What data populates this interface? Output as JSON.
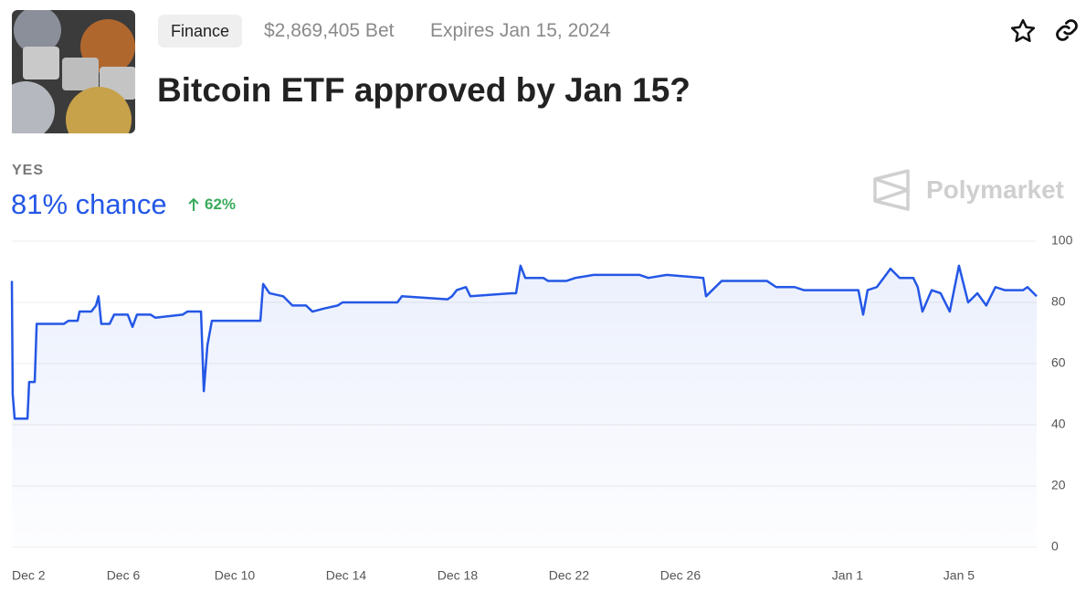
{
  "header": {
    "tag": "Finance",
    "volume": "$2,869,405 Bet",
    "expires": "Expires Jan 15, 2024",
    "title": "Bitcoin ETF approved by Jan 15?"
  },
  "outcome": {
    "label": "YES",
    "chance": "81% chance",
    "change": "62%"
  },
  "brand": "Polymarket",
  "chart_data": {
    "type": "line",
    "x": [
      0,
      0.03,
      0.1,
      0.56,
      0.62,
      0.82,
      0.89,
      1.87,
      2.03,
      2.36,
      2.43,
      2.85,
      3.02,
      3.11,
      3.21,
      3.51,
      3.67,
      4.16,
      4.33,
      4.49,
      4.98,
      5.15,
      6.13,
      6.3,
      6.79,
      6.89,
      7.02,
      7.18,
      7.93,
      8.1,
      8.92,
      9.02,
      9.25,
      9.74,
      10.07,
      10.56,
      10.79,
      11.21,
      11.7,
      11.87,
      13.84,
      14.0,
      15.64,
      15.8,
      15.97,
      16.3,
      16.46,
      17.93,
      18.1,
      18.26,
      18.43,
      19.08,
      19.25,
      19.9,
      20.23,
      20.89,
      22.52,
      22.85,
      23.51,
      24.82,
      24.92,
      25.48,
      27.11,
      27.44,
      28.1,
      28.43,
      30.23,
      30.39,
      30.56,
      30.72,
      31.05,
      31.38,
      31.54,
      31.87,
      32.36,
      32.52,
      32.69,
      33.02,
      33.34,
      33.67,
      34.0,
      34.33,
      34.66,
      34.98,
      35.31,
      35.64,
      36.3,
      36.46,
      36.79
    ],
    "series": [
      {
        "color": "#2457e6",
        "values": [
          87,
          50,
          42,
          42,
          54,
          54,
          73,
          73,
          74,
          74,
          77,
          77,
          79,
          82,
          73,
          73,
          76,
          76,
          72,
          76,
          76,
          75,
          76,
          77,
          77,
          51,
          66,
          74,
          74,
          74,
          74,
          86,
          83,
          82,
          79,
          79,
          77,
          78,
          79,
          80,
          80,
          82,
          81,
          82,
          84,
          85,
          82,
          83,
          83,
          92,
          88,
          88,
          87,
          87,
          88,
          89,
          89,
          88,
          89,
          88,
          82,
          87,
          87,
          85,
          85,
          84,
          84,
          84,
          76,
          84,
          85,
          89,
          91,
          88,
          88,
          85,
          77,
          84,
          83,
          77,
          92,
          80,
          83,
          79,
          85,
          84,
          84,
          85,
          82
        ]
      }
    ],
    "xlim": [
      0,
      36.79
    ],
    "xticks": [
      {
        "value": 0,
        "label": "Dec 2"
      },
      {
        "value": 4,
        "label": "Dec 6"
      },
      {
        "value": 8,
        "label": "Dec 10"
      },
      {
        "value": 12,
        "label": "Dec 14"
      },
      {
        "value": 16,
        "label": "Dec 18"
      },
      {
        "value": 20,
        "label": "Dec 22"
      },
      {
        "value": 24,
        "label": "Dec 26"
      },
      {
        "value": 30,
        "label": "Jan 1"
      },
      {
        "value": 34,
        "label": "Jan 5"
      }
    ],
    "ylim": [
      0,
      100
    ],
    "yticks": [
      0,
      20,
      40,
      60,
      80,
      100
    ],
    "grid": true
  }
}
